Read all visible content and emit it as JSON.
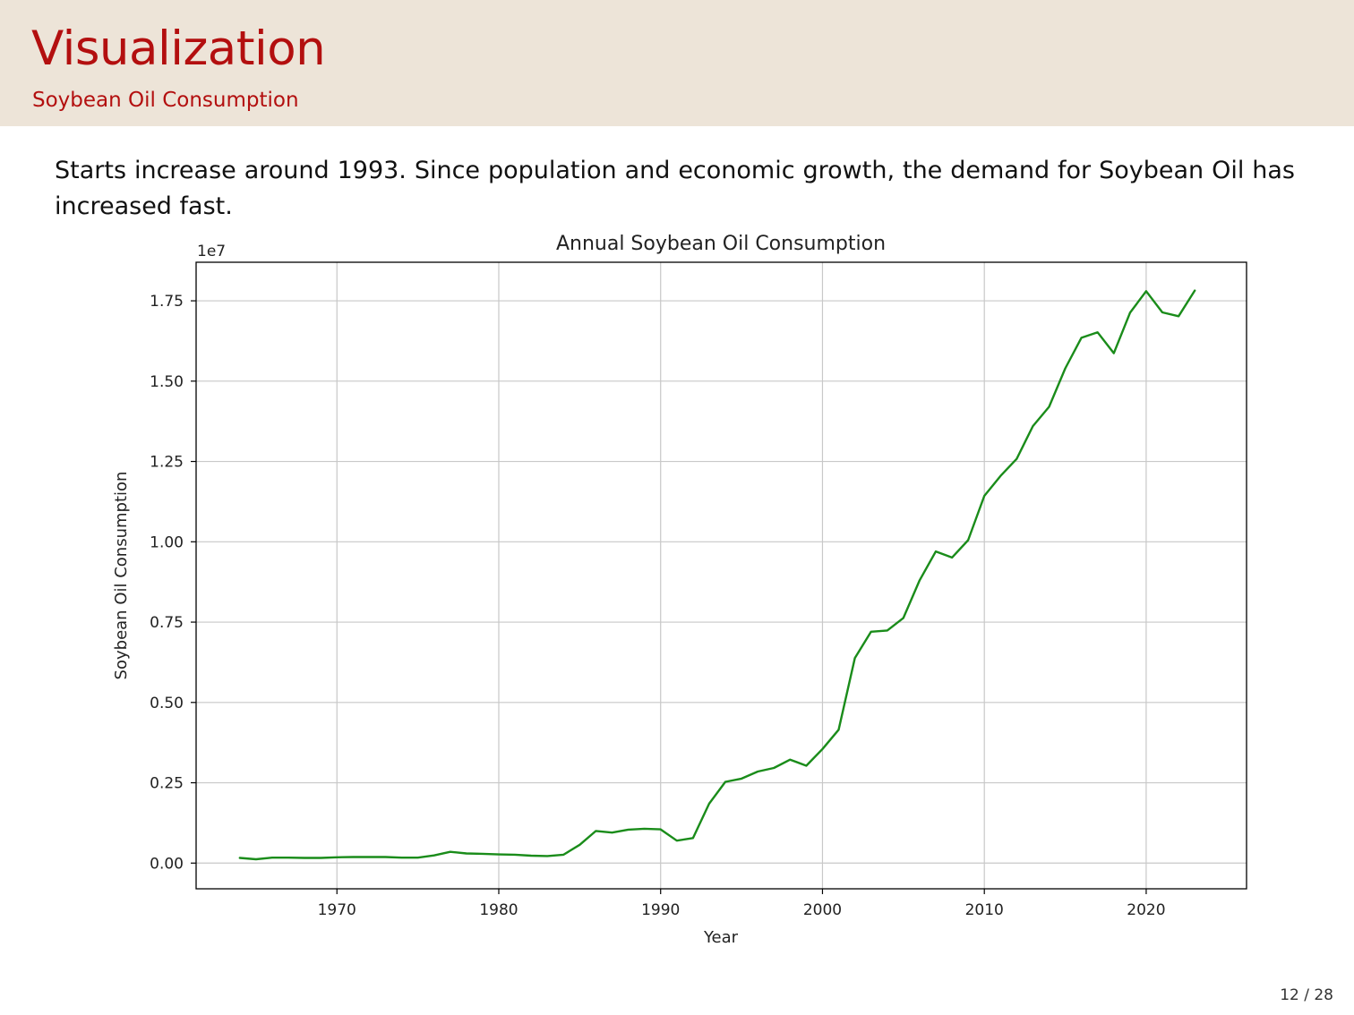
{
  "slide": {
    "title": "Visualization",
    "subtitle": "Soybean Oil Consumption",
    "body": "Starts increase around 1993. Since population and economic growth, the demand for Soybean Oil has increased fast.",
    "page": "12 / 28"
  },
  "colors": {
    "header_bg": "#ede4d8",
    "title": "#b30f0f",
    "line": "#1a8c1a",
    "grid": "#c8c8c8"
  },
  "chart_data": {
    "type": "line",
    "title": "Annual Soybean Oil Consumption",
    "xlabel": "Year",
    "ylabel": "Soybean Oil Consumption",
    "y_offset_label": "1e7",
    "xlim": [
      1961.3,
      2026.2
    ],
    "ylim": [
      -0.08,
      1.87
    ],
    "xticks": [
      1970,
      1980,
      1990,
      2000,
      2010,
      2020
    ],
    "yticks": [
      0.0,
      0.25,
      0.5,
      0.75,
      1.0,
      1.25,
      1.5,
      1.75
    ],
    "ytick_labels": [
      "0.00",
      "0.25",
      "0.50",
      "0.75",
      "1.00",
      "1.25",
      "1.50",
      "1.75"
    ],
    "grid": true,
    "legend": "none",
    "series": [
      {
        "color": "#1a8c1a",
        "x": [
          1964,
          1965,
          1966,
          1967,
          1968,
          1969,
          1970,
          1971,
          1972,
          1973,
          1974,
          1975,
          1976,
          1977,
          1978,
          1979,
          1980,
          1981,
          1982,
          1983,
          1984,
          1985,
          1986,
          1987,
          1988,
          1989,
          1990,
          1991,
          1992,
          1993,
          1994,
          1995,
          1996,
          1997,
          1998,
          1999,
          2000,
          2001,
          2002,
          2003,
          2004,
          2005,
          2006,
          2007,
          2008,
          2009,
          2010,
          2011,
          2012,
          2013,
          2014,
          2015,
          2016,
          2017,
          2018,
          2019,
          2020,
          2021,
          2022,
          2023
        ],
        "values": [
          0.016,
          0.012,
          0.017,
          0.017,
          0.016,
          0.016,
          0.018,
          0.019,
          0.019,
          0.019,
          0.017,
          0.017,
          0.024,
          0.035,
          0.03,
          0.029,
          0.027,
          0.026,
          0.023,
          0.022,
          0.026,
          0.057,
          0.1,
          0.095,
          0.104,
          0.107,
          0.105,
          0.07,
          0.078,
          0.185,
          0.253,
          0.263,
          0.285,
          0.296,
          0.322,
          0.303,
          0.355,
          0.415,
          0.638,
          0.72,
          0.724,
          0.763,
          0.88,
          0.97,
          0.951,
          1.005,
          1.143,
          1.205,
          1.258,
          1.36,
          1.42,
          1.54,
          1.635,
          1.652,
          1.587,
          1.713,
          1.78,
          1.714,
          1.702,
          1.782
        ]
      }
    ]
  }
}
